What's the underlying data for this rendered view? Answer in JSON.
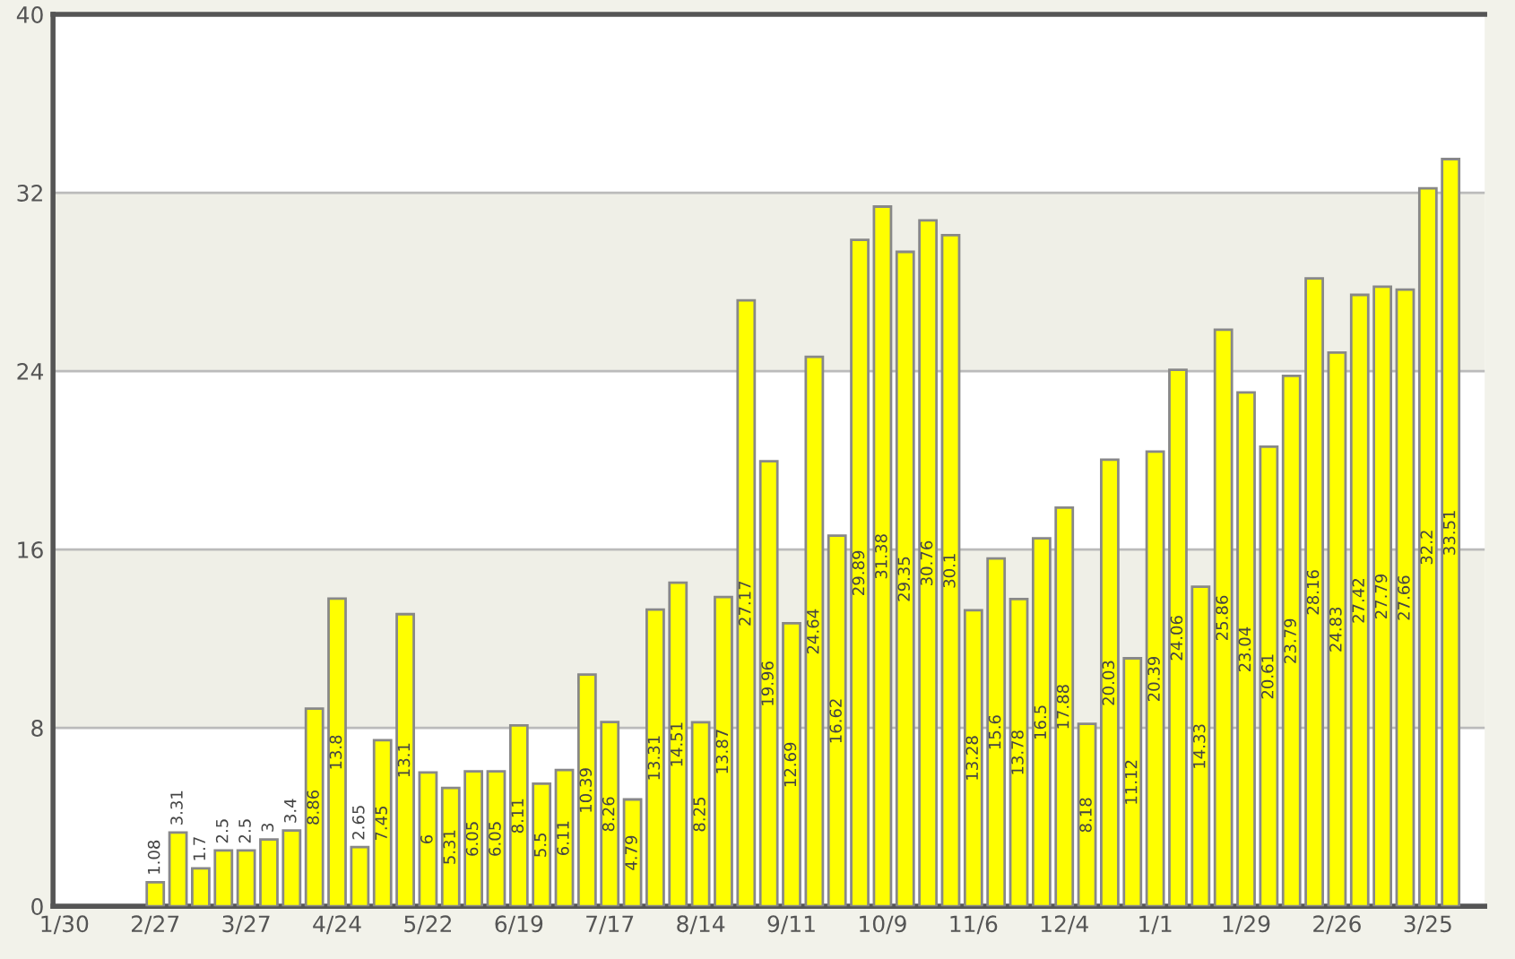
{
  "chart_data": {
    "type": "bar",
    "categories": [
      "1/30",
      null,
      null,
      null,
      "2/27",
      null,
      null,
      null,
      "3/27",
      null,
      null,
      null,
      "4/24",
      null,
      null,
      null,
      "5/22",
      null,
      null,
      null,
      "6/19",
      null,
      null,
      null,
      "7/17",
      null,
      null,
      null,
      "8/14",
      null,
      null,
      null,
      "9/11",
      null,
      null,
      null,
      "10/9",
      null,
      null,
      null,
      "11/6",
      null,
      null,
      null,
      "12/4",
      null,
      null,
      null,
      "1/1",
      null,
      null,
      null,
      "1/29",
      null,
      null,
      null,
      "2/26",
      null,
      null,
      null,
      "3/25",
      null,
      null
    ],
    "values": [
      null,
      null,
      null,
      null,
      1.08,
      3.31,
      1.7,
      2.5,
      2.5,
      3,
      3.4,
      8.86,
      13.8,
      2.65,
      7.45,
      13.1,
      6,
      5.31,
      6.05,
      6.05,
      8.11,
      5.5,
      6.11,
      10.39,
      8.26,
      4.79,
      13.31,
      14.51,
      8.25,
      13.87,
      27.17,
      19.96,
      12.69,
      24.64,
      16.62,
      29.89,
      31.38,
      29.35,
      30.76,
      30.1,
      13.28,
      15.6,
      13.78,
      16.5,
      17.88,
      8.18,
      20.03,
      11.12,
      20.39,
      24.06,
      14.33,
      25.86,
      23.04,
      20.61,
      23.79,
      28.16,
      24.83,
      27.42,
      27.79,
      27.66,
      32.2,
      33.51,
      null
    ],
    "color": "#ffff00",
    "ylim": [
      0,
      40
    ],
    "yticks": [
      0,
      8,
      16,
      24,
      32,
      40
    ],
    "grid": "y",
    "data_labels": true
  }
}
